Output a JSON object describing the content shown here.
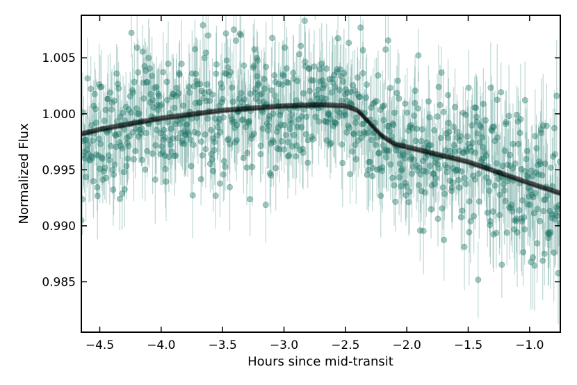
{
  "chart_data": {
    "type": "scatter",
    "title": "",
    "xlabel": "Hours since mid-transit",
    "ylabel": "Normalized Flux",
    "xlim": [
      -4.65,
      -0.75
    ],
    "ylim": [
      0.9805,
      1.0088
    ],
    "xticks": [
      -4.5,
      -4.0,
      -3.5,
      -3.0,
      -2.5,
      -2.0,
      -1.5,
      -1.0
    ],
    "xtick_labels": [
      "−4.5",
      "−4.0",
      "−3.5",
      "−3.0",
      "−2.5",
      "−2.0",
      "−1.5",
      "−1.0"
    ],
    "yticks": [
      0.985,
      0.99,
      0.995,
      1.0,
      1.005
    ],
    "ytick_labels": [
      "0.985",
      "0.990",
      "0.995",
      "1.000",
      "1.005"
    ],
    "grid": false,
    "legend": "none",
    "series": [
      {
        "kind": "observations-with-errorbars",
        "color": "#1f7a6b",
        "approx_points": 900,
        "typical_scatter": 0.0028,
        "typical_yerr": 0.0028
      },
      {
        "kind": "model-fit-band",
        "color": "#000000",
        "x": [
          -4.65,
          -4.5,
          -4.0,
          -3.5,
          -3.0,
          -2.7,
          -2.5,
          -2.4,
          -2.2,
          -2.1,
          -1.5,
          -1.0,
          -0.75
        ],
        "y": [
          0.9982,
          0.9986,
          0.9996,
          1.0003,
          1.0007,
          1.0008,
          1.0007,
          1.0003,
          0.998,
          0.9973,
          0.9957,
          0.9938,
          0.9929
        ]
      }
    ]
  }
}
